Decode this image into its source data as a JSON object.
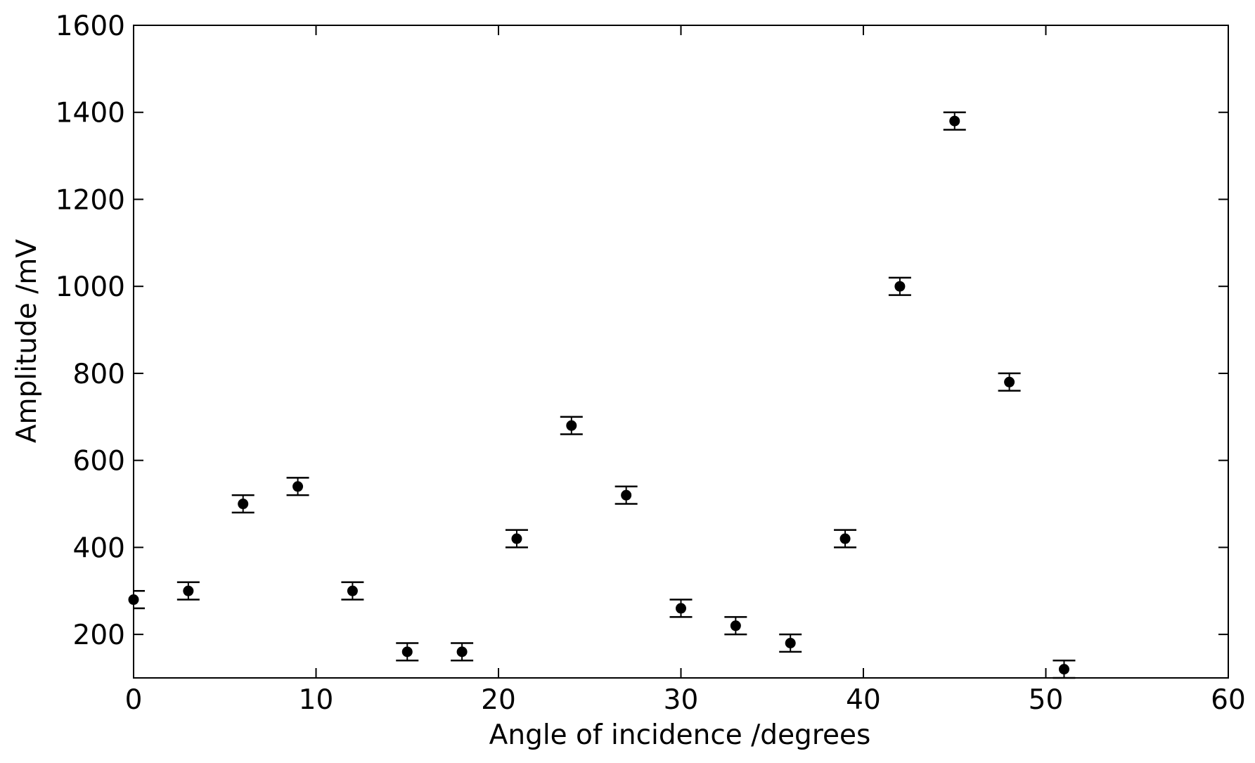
{
  "chart_data": {
    "type": "scatter",
    "title": "",
    "xlabel": "Angle of incidence /degrees",
    "ylabel": "Amplitude /mV",
    "xlim": [
      0,
      60
    ],
    "ylim": [
      100,
      1600
    ],
    "xticks": [
      0,
      10,
      20,
      30,
      40,
      50,
      60
    ],
    "yticks": [
      200,
      400,
      600,
      800,
      1000,
      1200,
      1400,
      1600
    ],
    "tick_direction": "in",
    "grid": false,
    "legend": "none",
    "marker_color": "#000000",
    "series": [
      {
        "x": [
          0,
          3,
          6,
          9,
          12,
          15,
          18,
          21,
          24,
          27,
          30,
          33,
          36,
          39,
          42,
          45,
          48,
          51
        ],
        "y": [
          280,
          300,
          500,
          540,
          300,
          160,
          160,
          420,
          680,
          520,
          260,
          220,
          180,
          420,
          1000,
          1380,
          780,
          120
        ],
        "yerr": [
          20,
          20,
          20,
          20,
          20,
          20,
          20,
          20,
          20,
          20,
          20,
          20,
          20,
          20,
          20,
          20,
          20,
          20
        ]
      }
    ]
  }
}
